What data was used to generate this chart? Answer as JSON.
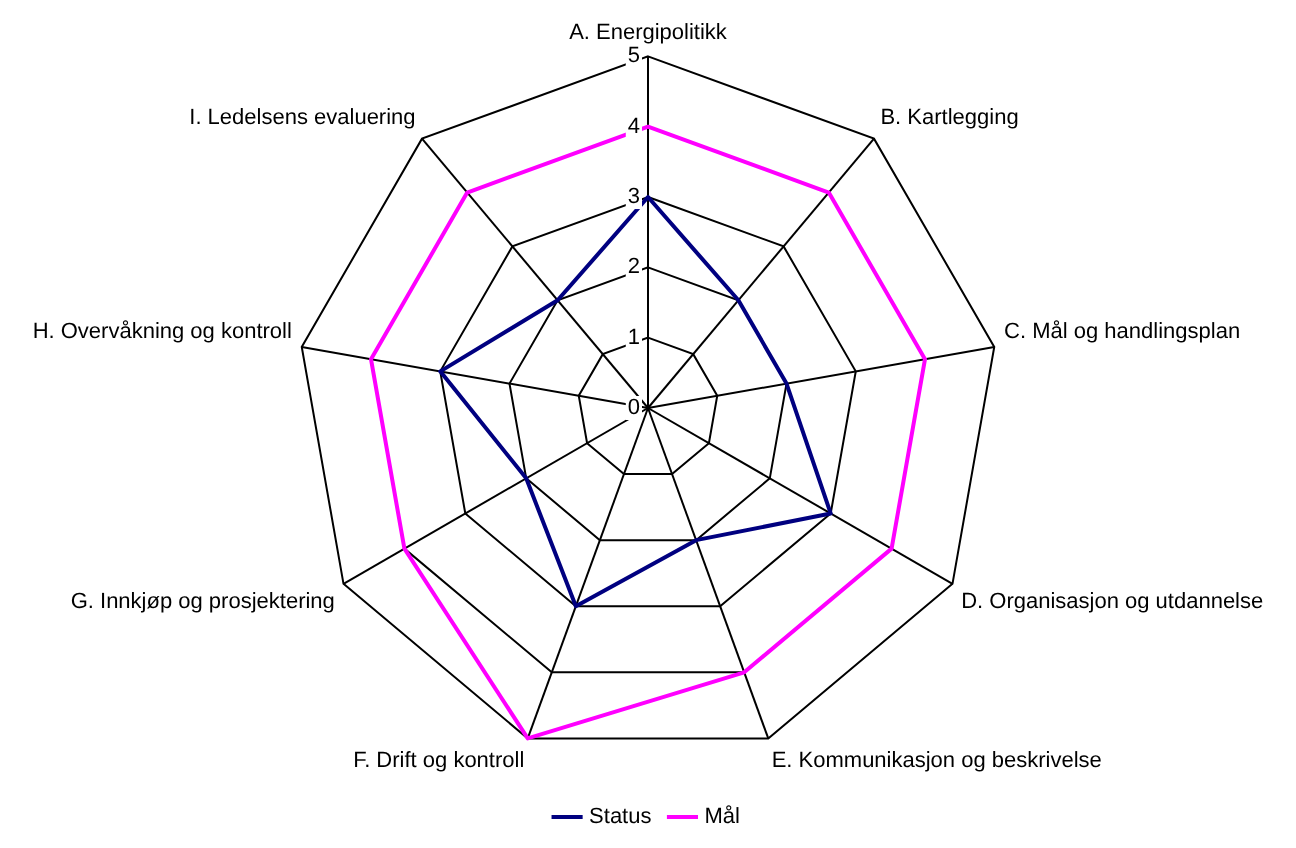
{
  "chart_data": {
    "type": "radar",
    "categories": [
      "A. Energipolitikk",
      "B. Kartlegging",
      "C. Mål og handlingsplan",
      "D. Organisasjon og utdannelse",
      "E. Kommunikasjon og beskrivelse",
      "F. Drift og kontroll",
      "G. Innkjøp og prosjektering",
      "H. Overvåkning og kontroll",
      "I. Ledelsens evaluering"
    ],
    "series": [
      {
        "name": "Status",
        "color": "#000080",
        "values": [
          3,
          2,
          2,
          3,
          2,
          3,
          2,
          3,
          2
        ]
      },
      {
        "name": "Mål",
        "color": "#ff00ff",
        "values": [
          4,
          4,
          4,
          4,
          4,
          5,
          4,
          4,
          4
        ]
      }
    ],
    "ylim": [
      0,
      5
    ],
    "yticks": [
      0,
      1,
      2,
      3,
      4,
      5
    ],
    "grid": true,
    "legend": "bottom",
    "marker": "none"
  }
}
